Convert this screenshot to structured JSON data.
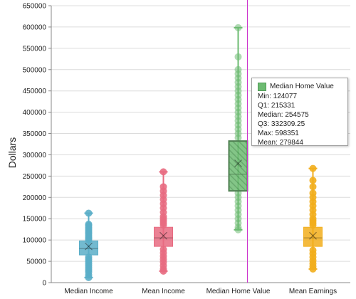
{
  "chart_data": {
    "type": "box",
    "ylabel": "Dollars",
    "ylim": [
      0,
      650000
    ],
    "yticks": [
      "0",
      "50000",
      "100000",
      "150000",
      "200000",
      "250000",
      "300000",
      "350000",
      "400000",
      "450000",
      "500000",
      "550000",
      "600000",
      "650000"
    ],
    "grid": true,
    "categories": [
      "Median Income",
      "Mean Income",
      "Median Home Value",
      "Mean Earnings"
    ],
    "series": [
      {
        "color": "#5aaec8",
        "min": 12000,
        "q1": 65000,
        "median": 80000,
        "q3": 98000,
        "max": 163000,
        "mean": 85000,
        "outliers": [
          12000,
          18000,
          25000,
          30000,
          35000,
          40000,
          45000,
          50000,
          55000,
          60000,
          100000,
          103000,
          106000,
          110000,
          114000,
          118000,
          122000,
          126000,
          130000,
          134000,
          137000,
          163000
        ]
      },
      {
        "color": "#e86b81",
        "min": 27000,
        "q1": 85000,
        "median": 105000,
        "q3": 130000,
        "max": 260000,
        "mean": 110000,
        "outliers": [
          27000,
          32000,
          40000,
          48000,
          55000,
          62000,
          70000,
          78000,
          135000,
          140000,
          145000,
          150000,
          155000,
          165000,
          175000,
          185000,
          195000,
          205000,
          215000,
          225000,
          260000
        ]
      },
      {
        "color": "#6dbb72",
        "min": 124077,
        "q1": 215331,
        "median": 254575,
        "q3": 332309.25,
        "max": 598351,
        "mean": 279844,
        "outliers": [
          124077,
          130000,
          140000,
          150000,
          160000,
          170000,
          180000,
          190000,
          200000,
          210000,
          340000,
          350000,
          360000,
          370000,
          380000,
          390000,
          400000,
          410000,
          420000,
          430000,
          440000,
          450000,
          460000,
          470000,
          480000,
          490000,
          500000,
          530000,
          598351
        ]
      },
      {
        "color": "#f2ae1c",
        "min": 32000,
        "q1": 85000,
        "median": 105000,
        "q3": 130000,
        "max": 268000,
        "mean": 110000,
        "outliers": [
          32000,
          38000,
          45000,
          52000,
          60000,
          68000,
          76000,
          135000,
          140000,
          145000,
          150000,
          160000,
          170000,
          180000,
          190000,
          200000,
          210000,
          225000,
          240000,
          268000
        ]
      }
    ],
    "hover": {
      "category_index": 2,
      "color": "#6dbb72"
    }
  },
  "tooltip": {
    "title": "Median Home Value",
    "min": "Min: 124077",
    "q1": "Q1: 215331",
    "median": "Median: 254575",
    "q3": "Q3: 332309.25",
    "max": "Max: 598351",
    "mean": "Mean: 279844"
  }
}
